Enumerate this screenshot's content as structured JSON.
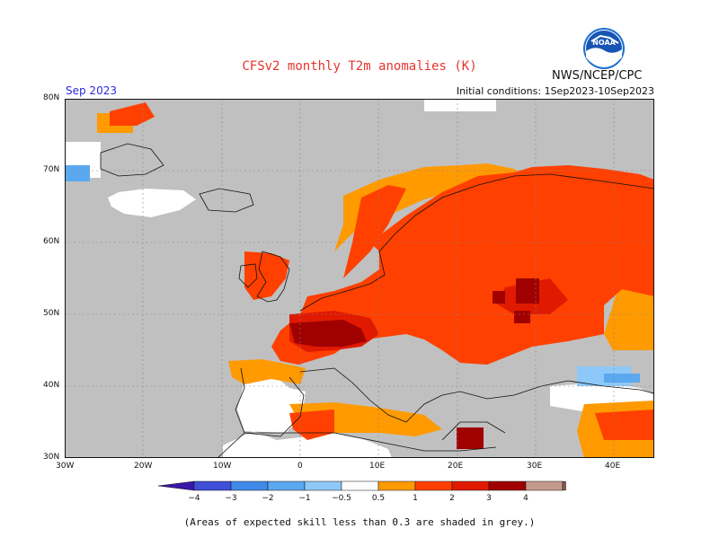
{
  "header": {
    "title": "CFSv2 monthly T2m anomalies (K)",
    "organization": "NWS/NCEP/CPC",
    "logo_text": "NOAA",
    "month": "Sep 2023",
    "initial_conditions": "Initial conditions: 1Sep2023-10Sep2023"
  },
  "map": {
    "lat_labels": [
      "80N",
      "70N",
      "60N",
      "50N",
      "40N",
      "30N"
    ],
    "lon_labels": [
      "30W",
      "20W",
      "10W",
      "0",
      "10E",
      "20E",
      "30E",
      "40E"
    ],
    "colors": {
      "skill_grey": "#c0c0c0",
      "ocean_border": "#111111"
    }
  },
  "colorbar": {
    "labels": [
      "−4",
      "−3",
      "−2",
      "−1",
      "−0.5",
      "0.5",
      "1",
      "2",
      "3",
      "4"
    ],
    "bins": [
      {
        "color": "#3b18a8"
      },
      {
        "color": "#3f4fd8"
      },
      {
        "color": "#3f8ae8"
      },
      {
        "color": "#5aa8f0"
      },
      {
        "color": "#8ec8f8"
      },
      {
        "color": "#ffffff"
      },
      {
        "color": "#ff9a00"
      },
      {
        "color": "#ff4000"
      },
      {
        "color": "#e01a00"
      },
      {
        "color": "#a00000"
      },
      {
        "color": "#c49a8c"
      },
      {
        "color": "#8c5a50"
      }
    ]
  },
  "footer": {
    "note": "(Areas of expected skill less than 0.3 are shaded in grey.)"
  }
}
